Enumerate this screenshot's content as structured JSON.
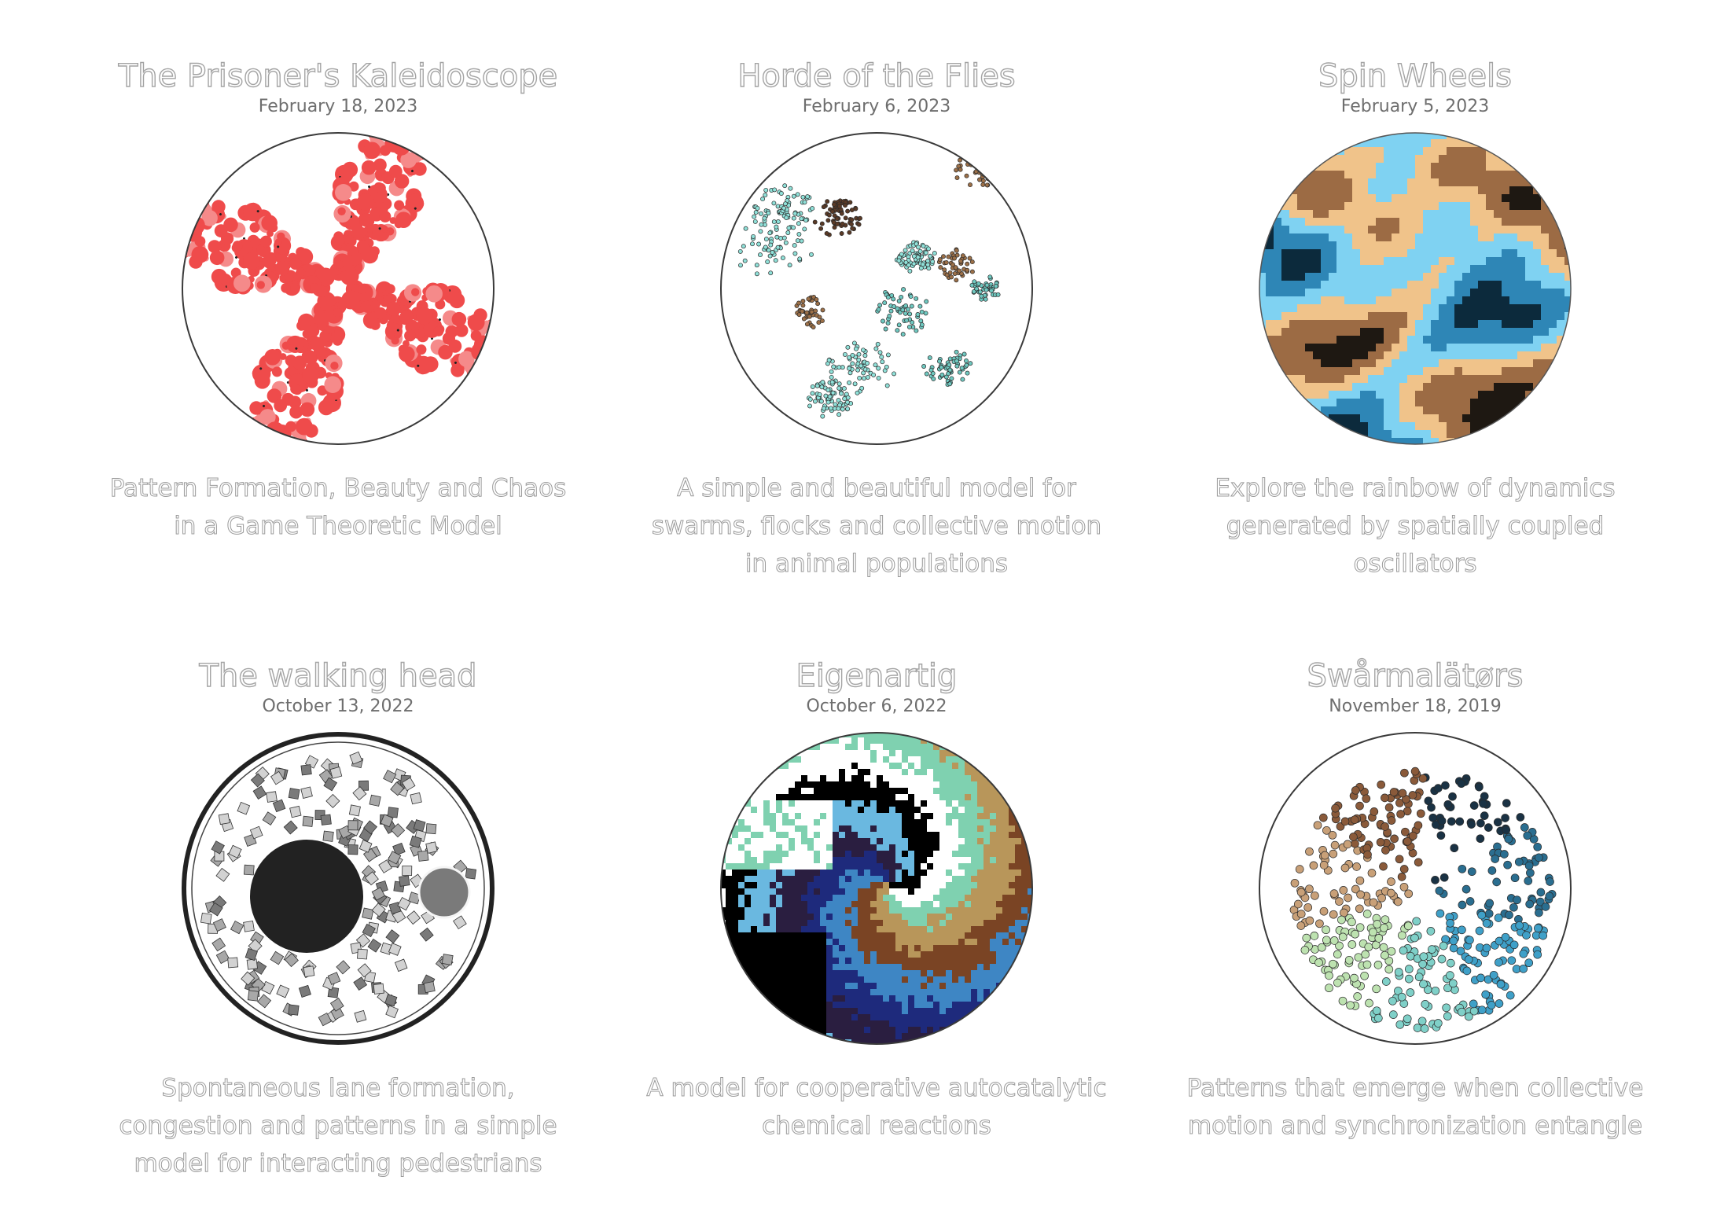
{
  "projects": [
    {
      "title": "The Prisoner's Kaleidoscope",
      "date": "February 18, 2023",
      "description": "Pattern Formation, Beauty and Chaos in a Game Theoretic Model",
      "thumbnail": "kaleidoscope",
      "palette": [
        "#ef4b4b",
        "#f58a8a",
        "#222222",
        "#ffffff"
      ]
    },
    {
      "title": "Horde of the Flies",
      "date": "February 6, 2023",
      "description": "A simple and beautiful model for swarms, flocks and collective motion in animal populations",
      "thumbnail": "swarm",
      "palette": [
        "#8fe0d8",
        "#6fc8c0",
        "#5a3a26",
        "#9c7048",
        "#2a2420"
      ]
    },
    {
      "title": "Spin Wheels",
      "date": "February 5, 2023",
      "description": "Explore the rainbow of dynamics generated by spatially coupled oscillators",
      "thumbnail": "oscillators",
      "palette": [
        "#0c2a3c",
        "#2e86b6",
        "#7fd2f2",
        "#f0c38a",
        "#9c6b44",
        "#1e1812"
      ]
    },
    {
      "title": "The walking head",
      "date": "October 13, 2022",
      "description": "Spontaneous lane formation, congestion and patterns in a simple model for interacting pedestrians",
      "thumbnail": "pedestrians",
      "palette": [
        "#222222",
        "#7a7a7a",
        "#a8a8a8",
        "#d2d2d2"
      ]
    },
    {
      "title": "Eigenartig",
      "date": "October 6, 2022",
      "description": "A model for cooperative autocatalytic chemical reactions",
      "thumbnail": "autocatalytic",
      "palette": [
        "#000000",
        "#ffffff",
        "#7fd1b0",
        "#b8965a",
        "#7a4424",
        "#3e86c4",
        "#1e2a7c",
        "#2a1e40",
        "#6ab8e0"
      ]
    },
    {
      "title": "Swårmalätørs",
      "date": "November 18, 2019",
      "description": "Patterns that emerge when collective motion and synchronization entangle",
      "thumbnail": "swarmalators",
      "palette": [
        "#1a3244",
        "#2a6e90",
        "#3fa0c8",
        "#7fd0c8",
        "#bde2b0",
        "#c8a078",
        "#8a5a3a"
      ]
    }
  ]
}
